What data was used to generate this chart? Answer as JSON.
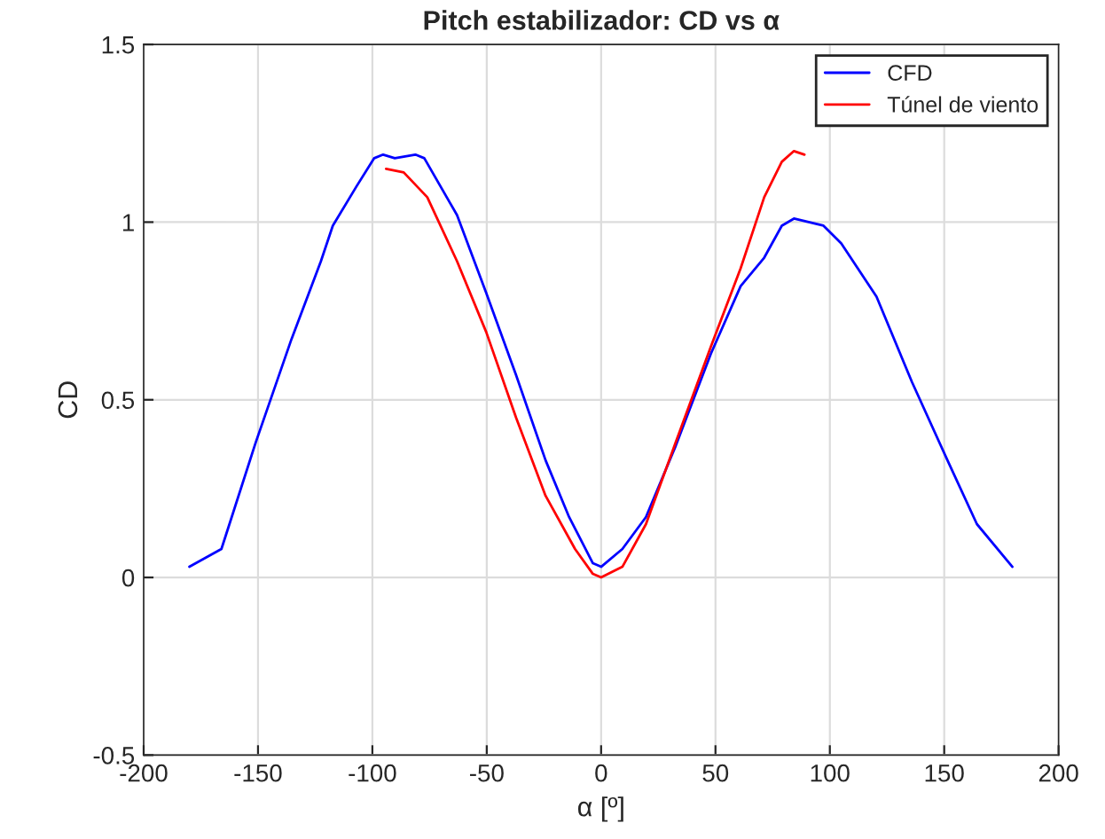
{
  "chart_data": {
    "type": "line",
    "title": "Pitch estabilizador: CD vs α",
    "xlabel": "α [º]",
    "ylabel": "CD",
    "xlim": [
      -200,
      200
    ],
    "xticks": [
      -200,
      -150,
      -100,
      -50,
      0,
      50,
      100,
      150,
      200
    ],
    "ylim": [
      -0.5,
      1.5
    ],
    "yticks": [
      -0.5,
      0,
      0.5,
      1,
      1.5
    ],
    "grid": true,
    "legend": "top right",
    "line_style": "solid",
    "series": [
      {
        "name": "CFD",
        "color": "#0000ff",
        "x": [
          -180,
          -166,
          -151,
          -135.4,
          -122.5,
          -117.3,
          -107,
          -99.2,
          -95.3,
          -90.2,
          -81.2,
          -77.3,
          -63,
          -50.2,
          -37.2,
          -24.3,
          -14,
          -3.6,
          0,
          9.3,
          19.6,
          32.6,
          48,
          61,
          71.3,
          79,
          84.3,
          97.2,
          105,
          120.4,
          135.9,
          151.4,
          164.3,
          179.8
        ],
        "values": [
          0.03,
          0.08,
          0.38,
          0.67,
          0.89,
          0.99,
          1.1,
          1.18,
          1.19,
          1.18,
          1.19,
          1.18,
          1.02,
          0.8,
          0.57,
          0.33,
          0.17,
          0.04,
          0.03,
          0.08,
          0.17,
          0.37,
          0.63,
          0.82,
          0.9,
          0.99,
          1.01,
          0.99,
          0.94,
          0.79,
          0.55,
          0.33,
          0.15,
          0.03
        ]
      },
      {
        "name": "Túnel de viento",
        "color": "#ff0000",
        "x": [
          -94,
          -86.3,
          -76,
          -63,
          -50.2,
          -37.2,
          -24.3,
          -11.4,
          -3.6,
          0,
          9.3,
          19.6,
          32.6,
          48,
          61,
          71.3,
          79,
          84.3,
          88.9
        ],
        "values": [
          1.15,
          1.14,
          1.07,
          0.89,
          0.69,
          0.45,
          0.23,
          0.08,
          0.01,
          0.0,
          0.03,
          0.15,
          0.38,
          0.65,
          0.87,
          1.07,
          1.17,
          1.2,
          1.19
        ]
      }
    ]
  }
}
